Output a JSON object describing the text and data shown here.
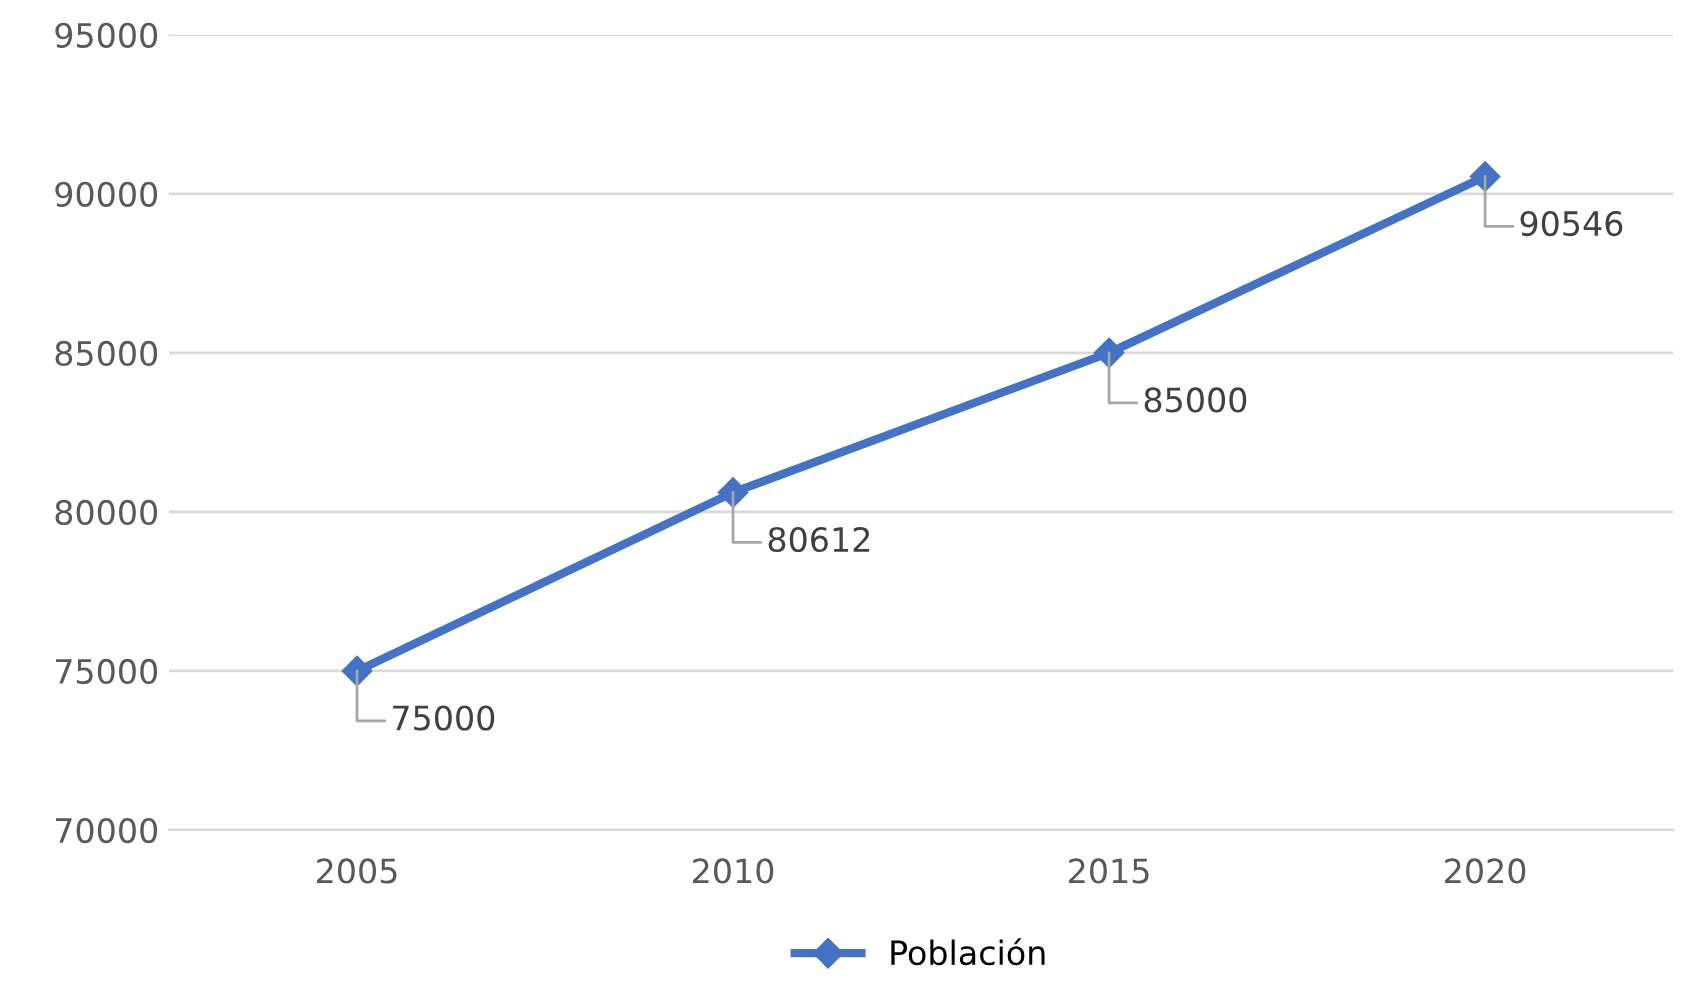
{
  "chart_data": {
    "type": "line",
    "categories": [
      "2005",
      "2010",
      "2015",
      "2020"
    ],
    "series": [
      {
        "name": "Población",
        "color": "#4472c4",
        "values": [
          75000,
          80612,
          85000,
          90546
        ]
      }
    ],
    "ylim": [
      70000,
      95000
    ],
    "yticks": [
      70000,
      75000,
      80000,
      85000,
      90000,
      95000
    ],
    "grid": "y",
    "legend": "bottom",
    "marker": "diamond",
    "line_style": "solid",
    "data_labels": true
  }
}
